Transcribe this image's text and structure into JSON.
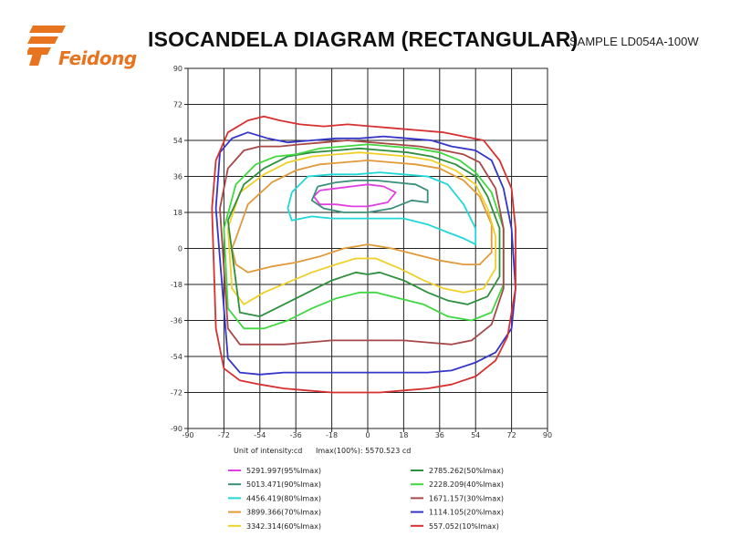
{
  "header": {
    "logo_text": "Feidong",
    "title": "ISOCANDELA DIAGRAM (RECTANGULAR)",
    "sample": "SAMPLE  LD054A-100W"
  },
  "colors": {
    "brand": "#e8741f",
    "grid": "#222222",
    "frame": "#444444"
  },
  "chart_data": {
    "type": "line",
    "title": "ISOCANDELA DIAGRAM (RECTANGULAR)",
    "xlim": [
      -90,
      90
    ],
    "ylim": [
      -90,
      90
    ],
    "x_ticks": [
      -90,
      -72,
      -54,
      -36,
      -18,
      0,
      18,
      36,
      54,
      72,
      90
    ],
    "y_ticks": [
      90,
      72,
      54,
      36,
      18,
      0,
      -18,
      -36,
      -54,
      -72,
      -90
    ],
    "grid": true,
    "unit_label": "Unit of intensity:cd",
    "imax_label": "Imax(100%): 5570.523 cd",
    "legend_position": "bottom",
    "series": [
      {
        "name": "5291.997(95%Imax)",
        "color": "#e040e0",
        "x": [
          -24,
          -16,
          -8,
          0,
          8,
          14,
          10,
          0,
          -8,
          -16,
          -24,
          -27,
          -24
        ],
        "y": [
          29,
          30,
          31,
          32,
          31,
          28,
          23,
          21,
          21,
          22,
          22,
          26,
          29
        ]
      },
      {
        "name": "5013.471(90%Imax)",
        "color": "#3a8f7a",
        "x": [
          -25,
          -16,
          -6,
          4,
          14,
          24,
          30,
          30,
          22,
          12,
          0,
          -12,
          -22,
          -28,
          -25
        ],
        "y": [
          31,
          33,
          34,
          34,
          33,
          32,
          29,
          23,
          24,
          20,
          18,
          18,
          20,
          24,
          31
        ]
      },
      {
        "name": "4456.419(80%Imax)",
        "color": "#20d8d8",
        "x": [
          -38,
          -30,
          -18,
          -6,
          6,
          18,
          30,
          40,
          48,
          54,
          54,
          48,
          40,
          30,
          18,
          6,
          -6,
          -18,
          -28,
          -38,
          -40,
          -38
        ],
        "y": [
          28,
          36,
          37,
          37,
          38,
          37,
          36,
          32,
          22,
          10,
          2,
          5,
          8,
          12,
          15,
          15,
          15,
          15,
          16,
          14,
          20,
          28
        ]
      },
      {
        "name": "3899.366(70%Imax)",
        "color": "#e09a3a",
        "x": [
          -66,
          -60,
          -48,
          -36,
          -24,
          -12,
          0,
          12,
          24,
          36,
          48,
          56,
          62,
          62,
          56,
          48,
          36,
          24,
          12,
          0,
          -12,
          -24,
          -36,
          -48,
          -60,
          -66,
          -68,
          -66
        ],
        "y": [
          5,
          22,
          33,
          39,
          42,
          43,
          44,
          43,
          42,
          40,
          34,
          26,
          12,
          -2,
          -8,
          -8,
          -6,
          -3,
          0,
          2,
          0,
          -4,
          -7,
          -9,
          -12,
          -8,
          0,
          5
        ]
      },
      {
        "name": "3342.314(60%Imax)",
        "color": "#f0d028",
        "x": [
          -70,
          -64,
          -52,
          -40,
          -28,
          -16,
          -4,
          8,
          20,
          32,
          44,
          54,
          60,
          64,
          64,
          58,
          48,
          38,
          28,
          16,
          4,
          -6,
          -16,
          -28,
          -40,
          -52,
          -62,
          -68,
          -70
        ],
        "y": [
          10,
          28,
          37,
          43,
          46,
          47,
          48,
          47,
          46,
          44,
          39,
          32,
          20,
          6,
          -10,
          -20,
          -22,
          -20,
          -16,
          -10,
          -5,
          -5,
          -8,
          -12,
          -17,
          -22,
          -28,
          -20,
          10
        ]
      },
      {
        "name": "2785.262(50%Imax)",
        "color": "#2e8f3e",
        "x": [
          -70,
          -62,
          -52,
          -40,
          -28,
          -16,
          -4,
          8,
          20,
          32,
          44,
          54,
          60,
          66,
          66,
          60,
          50,
          40,
          30,
          18,
          6,
          0,
          -6,
          -18,
          -30,
          -42,
          -54,
          -64,
          -70
        ],
        "y": [
          14,
          32,
          40,
          46,
          48,
          49,
          50,
          49,
          48,
          46,
          42,
          36,
          26,
          10,
          -14,
          -24,
          -28,
          -26,
          -22,
          -16,
          -12,
          -13,
          -12,
          -16,
          -22,
          -28,
          -34,
          -32,
          14
        ]
      },
      {
        "name": "2228.209(40%Imax)",
        "color": "#40d840",
        "x": [
          -72,
          -66,
          -56,
          -46,
          -36,
          -24,
          -12,
          0,
          12,
          24,
          36,
          46,
          54,
          62,
          68,
          68,
          62,
          52,
          40,
          28,
          16,
          4,
          -4,
          -16,
          -28,
          -40,
          -52,
          -62,
          -70,
          -72
        ],
        "y": [
          10,
          32,
          42,
          46,
          47,
          50,
          51,
          52,
          51,
          50,
          48,
          44,
          38,
          28,
          10,
          -18,
          -32,
          -36,
          -34,
          -28,
          -25,
          -22,
          -22,
          -25,
          -30,
          -36,
          -40,
          -40,
          -30,
          10
        ]
      },
      {
        "name": "1671.157(30%Imax)",
        "color": "#a84848",
        "x": [
          -74,
          -70,
          -62,
          -54,
          -44,
          -34,
          -22,
          -10,
          2,
          14,
          26,
          38,
          48,
          56,
          64,
          68,
          68,
          62,
          52,
          42,
          30,
          18,
          6,
          0,
          -6,
          -18,
          -30,
          -42,
          -54,
          -64,
          -70,
          -74
        ],
        "y": [
          20,
          40,
          49,
          51,
          51,
          52,
          53,
          54,
          53,
          52,
          51,
          49,
          47,
          43,
          30,
          10,
          -20,
          -38,
          -46,
          -48,
          -47,
          -46,
          -46,
          -46,
          -46,
          -46,
          -47,
          -48,
          -48,
          -48,
          -40,
          20
        ]
      },
      {
        "name": "1114.105(20%Imax)",
        "color": "#3535c8",
        "x": [
          -76,
          -74,
          -68,
          -60,
          -50,
          -40,
          -28,
          -16,
          -4,
          8,
          20,
          32,
          42,
          54,
          62,
          68,
          72,
          74,
          72,
          64,
          54,
          42,
          30,
          18,
          6,
          -6,
          -18,
          -30,
          -42,
          -54,
          -64,
          -70,
          -76
        ],
        "y": [
          20,
          48,
          55,
          58,
          55,
          53,
          54,
          55,
          55,
          56,
          55,
          54,
          51,
          49,
          44,
          30,
          10,
          -20,
          -40,
          -52,
          -57,
          -61,
          -62,
          -62,
          -62,
          -62,
          -62,
          -62,
          -62,
          -63,
          -62,
          -55,
          20
        ]
      },
      {
        "name": "557.052(10%Imax)",
        "color": "#d83030",
        "x": [
          -78,
          -76,
          -70,
          -60,
          -52,
          -44,
          -34,
          -22,
          -10,
          2,
          14,
          26,
          38,
          48,
          58,
          66,
          72,
          74,
          74,
          70,
          64,
          54,
          42,
          30,
          18,
          6,
          -6,
          -18,
          -30,
          -42,
          -54,
          -64,
          -72,
          -76,
          -78
        ],
        "y": [
          20,
          44,
          58,
          64,
          66,
          64,
          62,
          61,
          62,
          61,
          60,
          59,
          58,
          56,
          54,
          44,
          30,
          10,
          -20,
          -44,
          -56,
          -64,
          -68,
          -70,
          -71,
          -72,
          -72,
          -72,
          -71,
          -70,
          -68,
          -66,
          -60,
          -40,
          20
        ]
      }
    ]
  }
}
